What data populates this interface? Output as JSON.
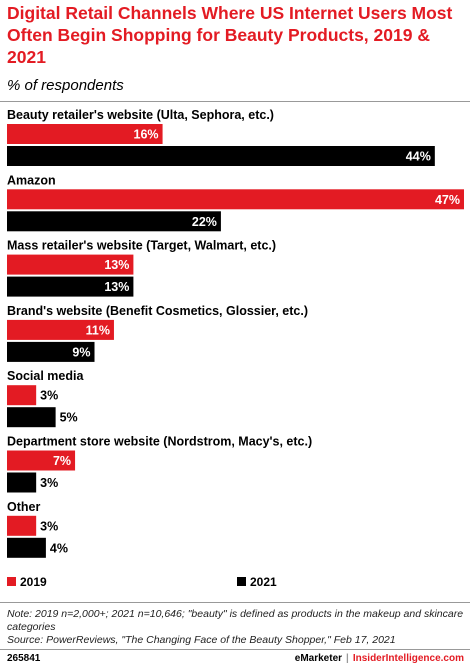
{
  "header": {
    "title": "Digital Retail Channels Where US Internet Users Most Often Begin Shopping for Beauty Products, 2019 & 2021",
    "subtitle": "% of respondents"
  },
  "colors": {
    "s2019": "#e31b23",
    "s2021": "#000000",
    "label": "#000000"
  },
  "chart_data": {
    "type": "bar",
    "orientation": "horizontal",
    "categories": [
      "Beauty retailer's website (Ulta, Sephora, etc.)",
      "Amazon",
      "Mass retailer's website (Target, Walmart, etc.)",
      "Brand's website (Benefit Cosmetics, Glossier, etc.)",
      "Social media",
      "Department store website (Nordstrom, Macy's, etc.)",
      "Other"
    ],
    "series": [
      {
        "name": "2019",
        "values": [
          16,
          47,
          13,
          11,
          3,
          7,
          3
        ]
      },
      {
        "name": "2021",
        "values": [
          44,
          22,
          13,
          9,
          5,
          3,
          4
        ]
      }
    ],
    "value_suffix": "%",
    "xlim": [
      0,
      47
    ],
    "grid": false,
    "legend": "bottom"
  },
  "legend": {
    "label_2019": "2019",
    "label_2021": "2021"
  },
  "footer": {
    "note": "Note: 2019 n=2,000+; 2021 n=10,646; \"beauty\" is defined as products in the makeup and skincare categories",
    "source": "Source: PowerReviews, \"The Changing Face of the Beauty Shopper,\" Feb 17, 2021",
    "id": "265841",
    "brand1": "eMarketer",
    "separator": "|",
    "brand2": "InsiderIntelligence.com"
  }
}
